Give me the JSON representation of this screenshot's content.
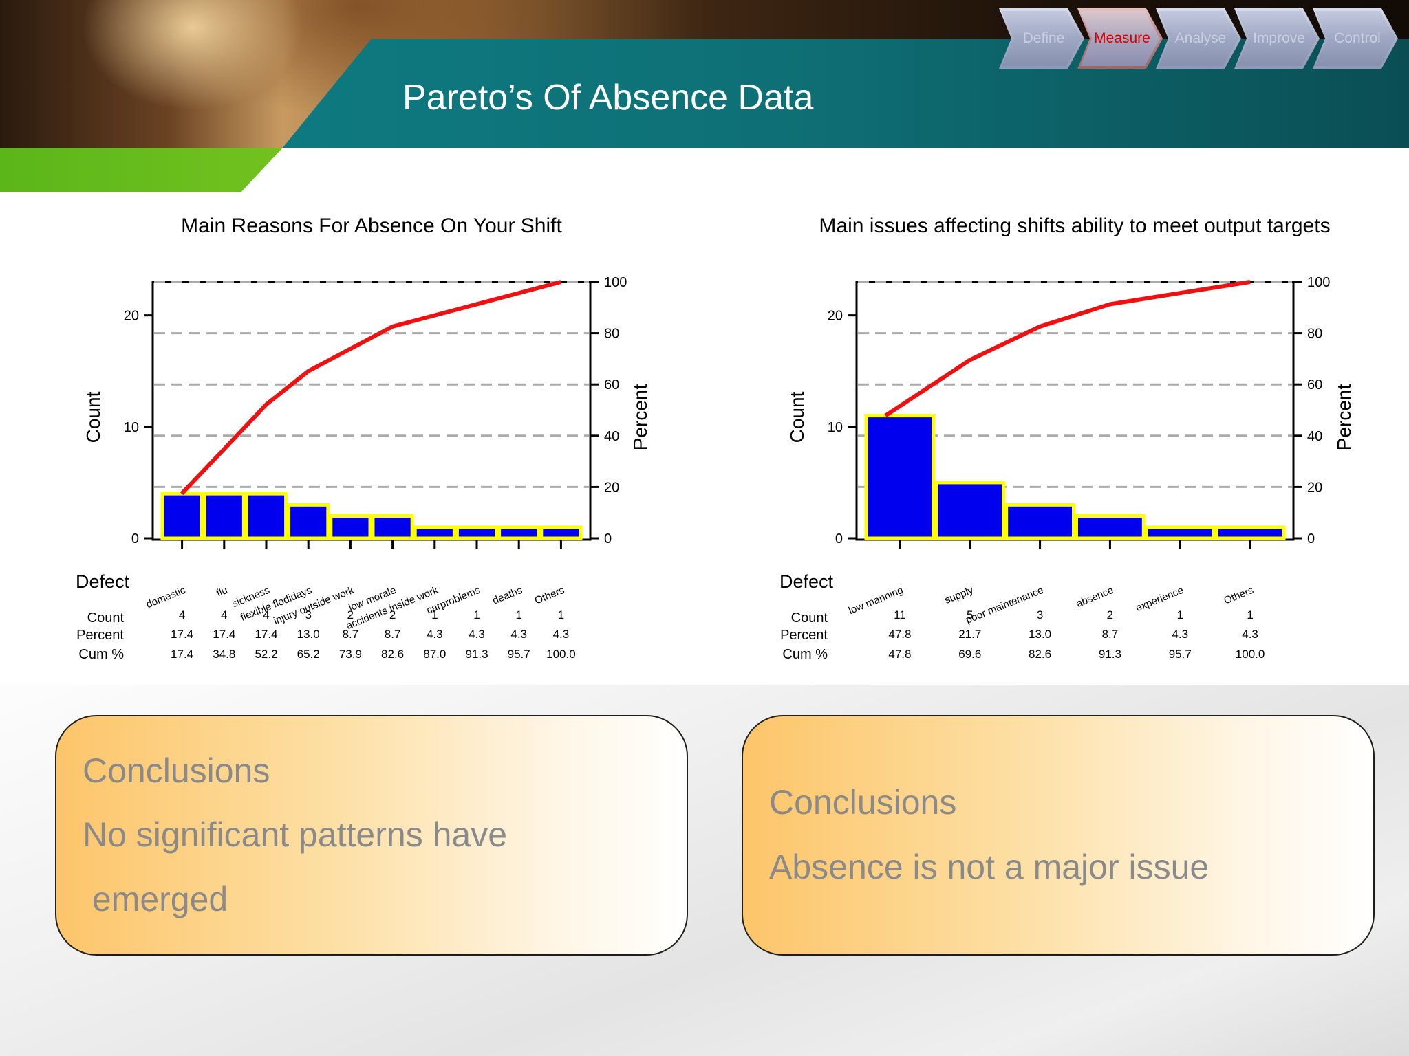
{
  "slide": {
    "title": "Pareto’s Of Absence Data",
    "process_steps": [
      {
        "label": "Define",
        "active": false
      },
      {
        "label": "Measure",
        "active": true
      },
      {
        "label": "Analyse",
        "active": false
      },
      {
        "label": "Improve",
        "active": false
      },
      {
        "label": "Control",
        "active": false
      }
    ]
  },
  "colors": {
    "bar_fill": "#0000ee",
    "bar_outline": "#ffff00",
    "cum_line": "#ee1111",
    "active_step": "#d80000"
  },
  "chart_data": [
    {
      "type": "bar",
      "title": "Main Reasons For Absence On Your Shift",
      "ylabel": "Count",
      "y2label": "Percent",
      "ylim": [
        0,
        23
      ],
      "yticks": [
        0,
        10,
        20
      ],
      "y2ticks": [
        0,
        20,
        40,
        60,
        80,
        100
      ],
      "grid": true,
      "categories": [
        "domestic",
        "flu",
        "sickness",
        "flexible flodidays",
        "injury outside work",
        "low morale",
        "accidents inside work",
        "carproblems",
        "deaths",
        "Others"
      ],
      "values": [
        4,
        4,
        4,
        3,
        2,
        2,
        1,
        1,
        1,
        1
      ],
      "percent": [
        "17.4",
        "17.4",
        "17.4",
        "13.0",
        "8.7",
        "8.7",
        "4.3",
        "4.3",
        "4.3",
        "4.3"
      ],
      "cum_percent": [
        "17.4",
        "34.8",
        "52.2",
        "65.2",
        "73.9",
        "82.6",
        "87.0",
        "91.3",
        "95.7",
        "100.0"
      ],
      "table_labels": {
        "defect": "Defect",
        "count": "Count",
        "percent": "Percent",
        "cum": "Cum %"
      }
    },
    {
      "type": "bar",
      "title": "Main issues affecting shifts ability to meet output targets",
      "ylabel": "Count",
      "y2label": "Percent",
      "ylim": [
        0,
        23
      ],
      "yticks": [
        0,
        10,
        20
      ],
      "y2ticks": [
        0,
        20,
        40,
        60,
        80,
        100
      ],
      "grid": true,
      "categories": [
        "low manning",
        "supply",
        "poor maintenance",
        "absence",
        "experience",
        "Others"
      ],
      "values": [
        11,
        5,
        3,
        2,
        1,
        1
      ],
      "percent": [
        "47.8",
        "21.7",
        "13.0",
        "8.7",
        "4.3",
        "4.3"
      ],
      "cum_percent": [
        "47.8",
        "69.6",
        "82.6",
        "91.3",
        "95.7",
        "100.0"
      ],
      "table_labels": {
        "defect": "Defect",
        "count": "Count",
        "percent": "Percent",
        "cum": "Cum %"
      }
    }
  ],
  "conclusions": [
    {
      "heading": "Conclusions",
      "lines": [
        "No significant patterns have",
        " emerged"
      ]
    },
    {
      "heading": "Conclusions",
      "lines": [
        "Absence is not a major issue"
      ]
    }
  ]
}
